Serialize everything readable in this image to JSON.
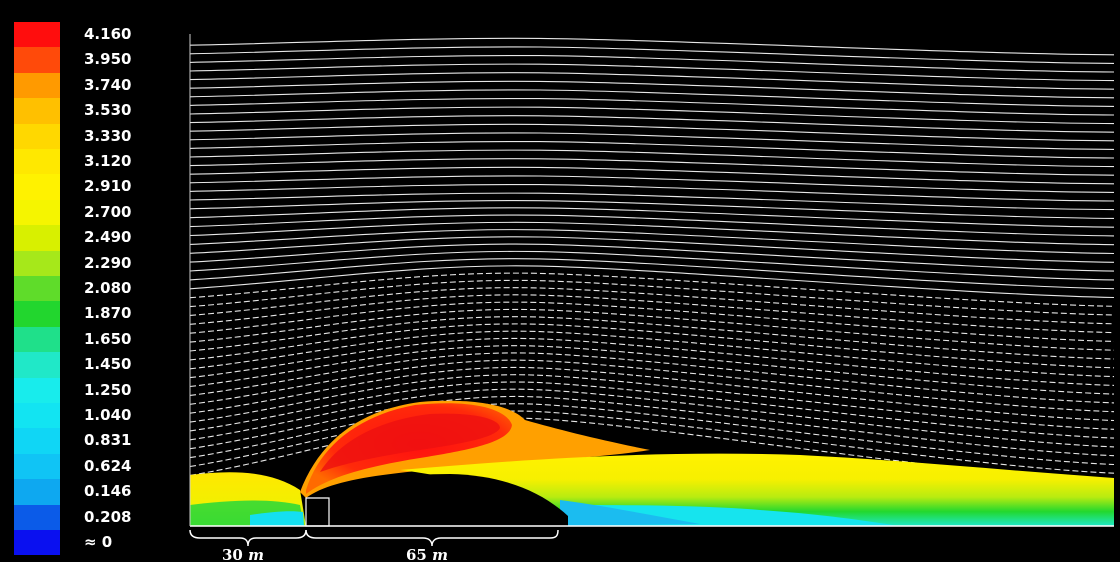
{
  "legend": {
    "levels": [
      {
        "label": "4.160",
        "color": "#ff0d0d"
      },
      {
        "label": "3.950",
        "color": "#ff4a0a"
      },
      {
        "label": "3.740",
        "color": "#ff9a00"
      },
      {
        "label": "3.530",
        "color": "#ffc000"
      },
      {
        "label": "3.330",
        "color": "#ffd800"
      },
      {
        "label": "3.120",
        "color": "#ffe800"
      },
      {
        "label": "2.910",
        "color": "#fff200"
      },
      {
        "label": "2.700",
        "color": "#f5f500"
      },
      {
        "label": "2.490",
        "color": "#d8f000"
      },
      {
        "label": "2.290",
        "color": "#a6e81a"
      },
      {
        "label": "2.080",
        "color": "#5fdc2a"
      },
      {
        "label": "1.870",
        "color": "#22d62e"
      },
      {
        "label": "1.650",
        "color": "#1fe08a"
      },
      {
        "label": "1.450",
        "color": "#20e8c8"
      },
      {
        "label": "1.250",
        "color": "#18ecec"
      },
      {
        "label": "1.040",
        "color": "#12e4f2"
      },
      {
        "label": "0.831",
        "color": "#10d6f5"
      },
      {
        "label": "0.624",
        "color": "#10c4f5"
      },
      {
        "label": "0.146",
        "color": "#0ea8f0"
      },
      {
        "label": "0.208",
        "color": "#0b5be8"
      },
      {
        "label": "≈ 0",
        "color": "#0a10f0"
      }
    ]
  },
  "dimensions": {
    "upstream": {
      "value": "30",
      "unit": "m"
    },
    "hill": {
      "value": "65",
      "unit": "m"
    }
  }
}
